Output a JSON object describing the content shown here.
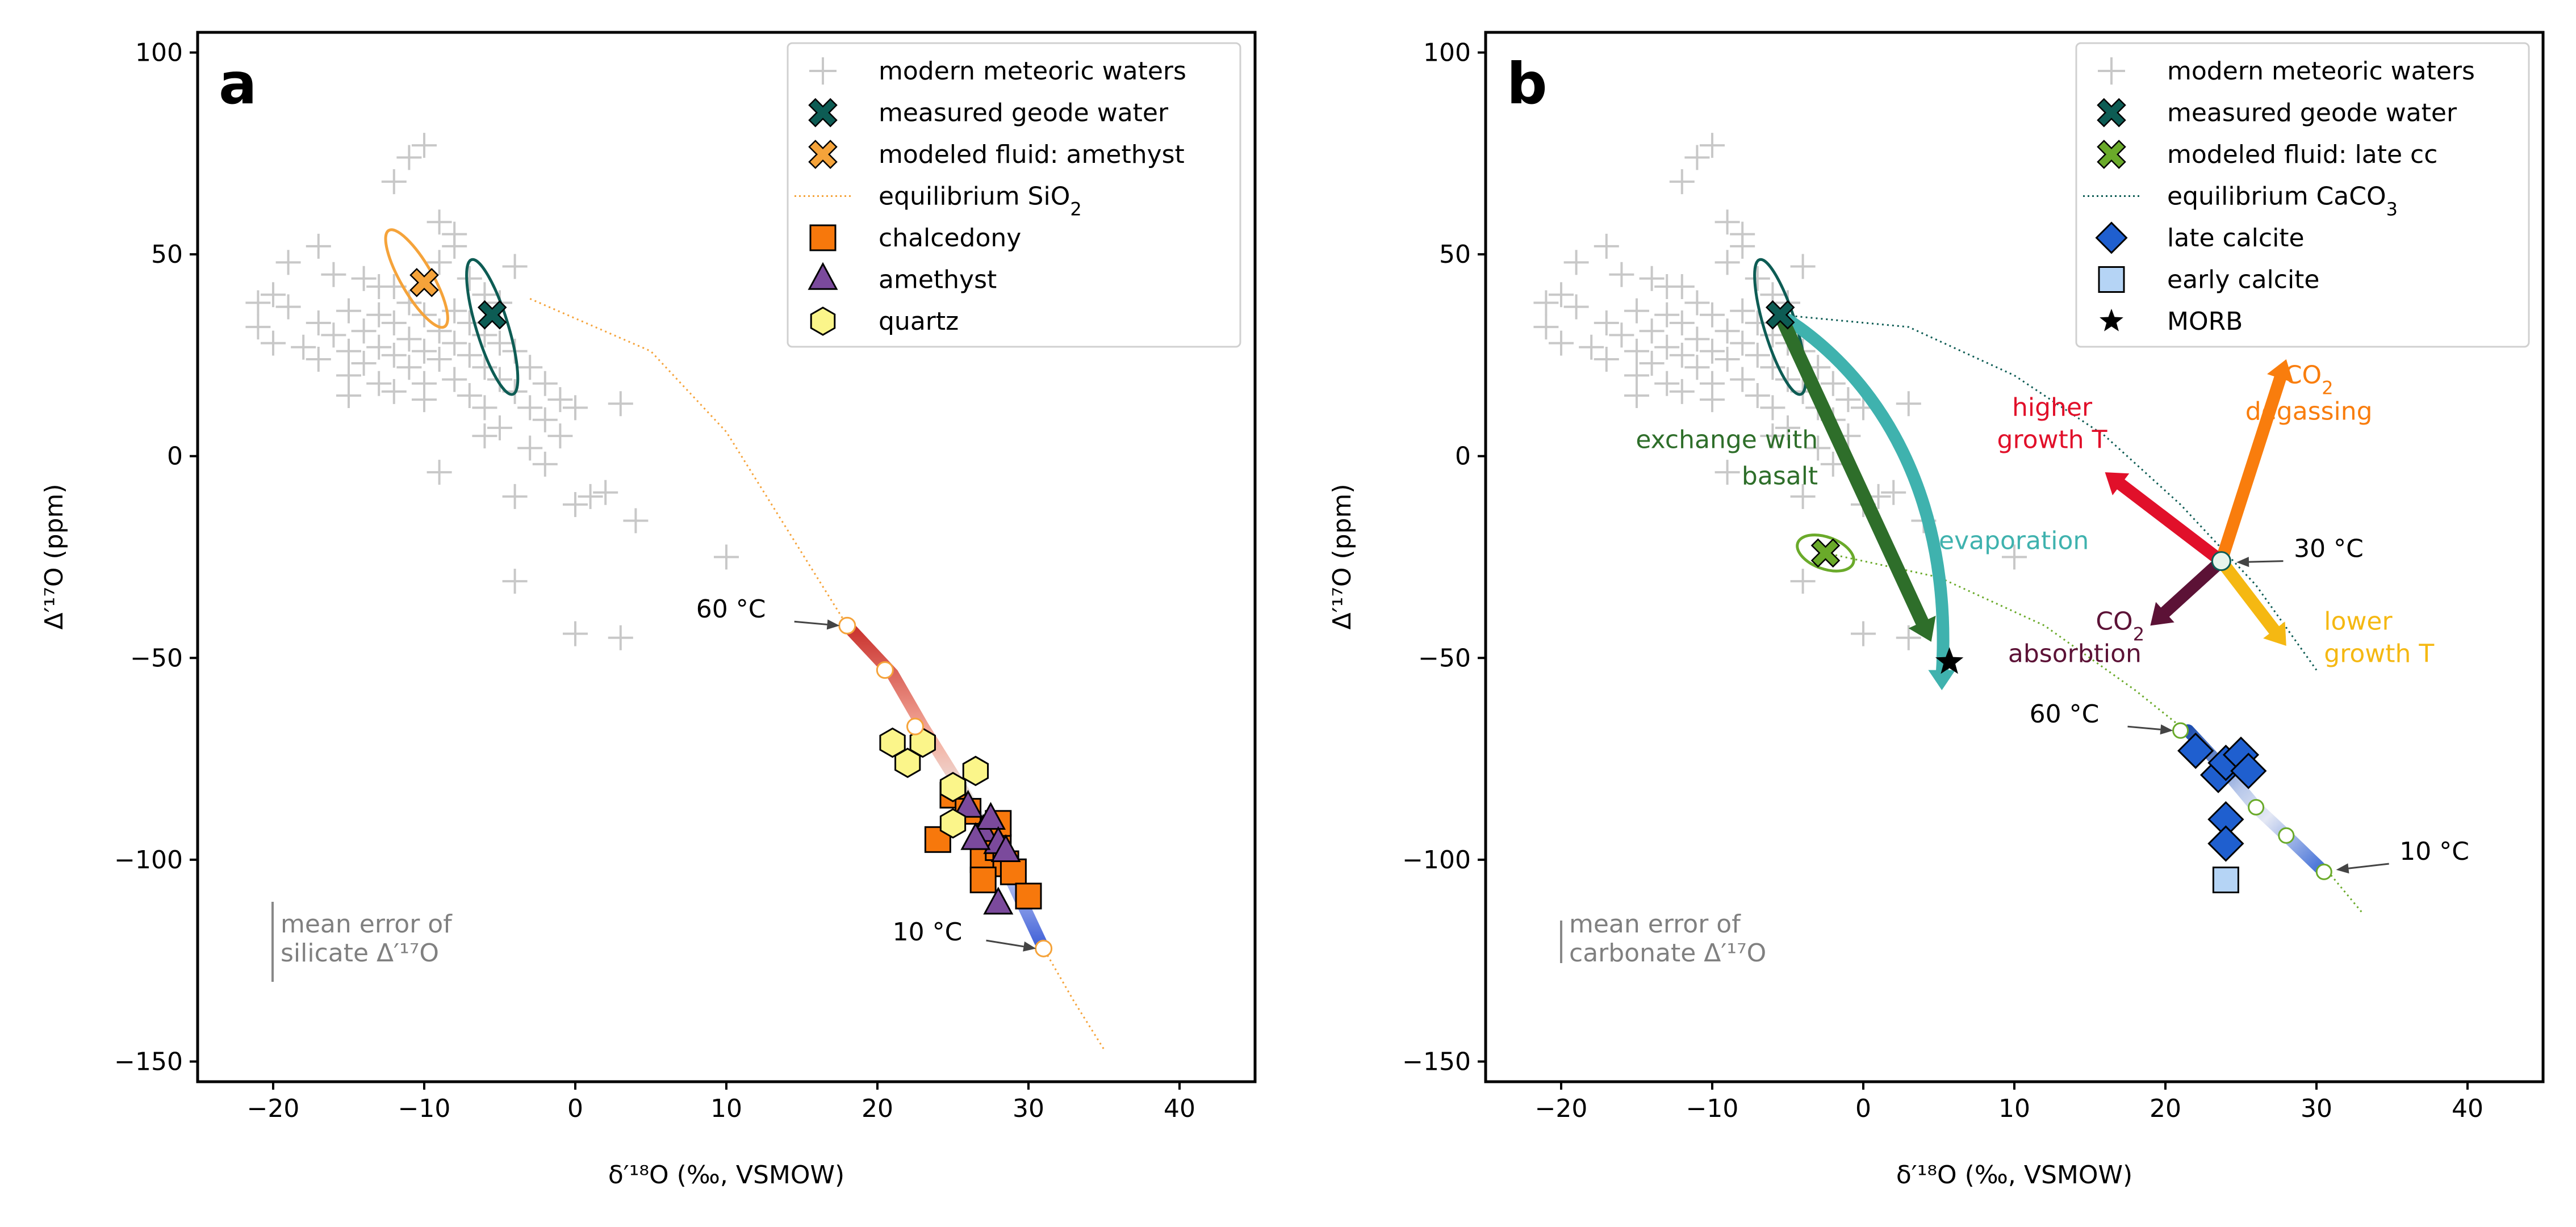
{
  "chart_data": [
    {
      "type": "scatter",
      "panel_label": "a",
      "xlabel": "δ′¹⁸O (‰, VSMOW)",
      "ylabel": "Δ′¹⁷O (ppm)",
      "xlim": [
        -25,
        45
      ],
      "ylim": [
        -155,
        105
      ],
      "xticks": [
        -20,
        -10,
        0,
        10,
        20,
        30,
        40
      ],
      "yticks": [
        100,
        50,
        0,
        -50,
        -100,
        -150
      ],
      "legend_position": "top-right",
      "legend": [
        {
          "label": "modern meteoric waters",
          "marker": "plus",
          "color": "#c8c8c8"
        },
        {
          "label": "measured geode water",
          "marker": "x",
          "color": "#0d5c54"
        },
        {
          "label": "modeled fluid: amethyst",
          "marker": "x",
          "color": "#f5a33a"
        },
        {
          "label": "equilibrium SiO",
          "label_sub": "2",
          "marker": "dotted",
          "color": "#f5a33a"
        },
        {
          "label": "chalcedony",
          "marker": "square",
          "color": "#f7780c"
        },
        {
          "label": "amethyst",
          "marker": "triangle",
          "color": "#7b4a9c"
        },
        {
          "label": "quartz",
          "marker": "hexagon",
          "color": "#fbf58a"
        }
      ],
      "meteoric_waters": [
        [
          -21,
          38
        ],
        [
          -20,
          40
        ],
        [
          -21,
          32
        ],
        [
          -20,
          28
        ],
        [
          -19,
          37
        ],
        [
          -18,
          27
        ],
        [
          -17,
          33
        ],
        [
          -17,
          24
        ],
        [
          -16,
          45
        ],
        [
          -16,
          30
        ],
        [
          -15,
          36
        ],
        [
          -15,
          26
        ],
        [
          -15,
          20
        ],
        [
          -14,
          44
        ],
        [
          -14,
          31
        ],
        [
          -14,
          23
        ],
        [
          -13,
          35
        ],
        [
          -13,
          27
        ],
        [
          -13,
          18
        ],
        [
          -12,
          42
        ],
        [
          -12,
          33
        ],
        [
          -12,
          25
        ],
        [
          -11,
          38
        ],
        [
          -11,
          29
        ],
        [
          -11,
          22
        ],
        [
          -10,
          35
        ],
        [
          -10,
          26
        ],
        [
          -10,
          18
        ],
        [
          -9,
          31
        ],
        [
          -9,
          24
        ],
        [
          -9,
          48
        ],
        [
          -8,
          36
        ],
        [
          -8,
          28
        ],
        [
          -8,
          19
        ],
        [
          -8,
          52
        ],
        [
          -7,
          33
        ],
        [
          -7,
          25
        ],
        [
          -7,
          15
        ],
        [
          -7,
          44
        ],
        [
          -6,
          30
        ],
        [
          -6,
          22
        ],
        [
          -6,
          12
        ],
        [
          -5,
          28
        ],
        [
          -5,
          19
        ],
        [
          -5,
          7
        ],
        [
          -4,
          26
        ],
        [
          -4,
          16
        ],
        [
          -4,
          -10
        ],
        [
          -3,
          22
        ],
        [
          -3,
          12
        ],
        [
          -3,
          2
        ],
        [
          -2,
          18
        ],
        [
          -2,
          9
        ],
        [
          -2,
          -2
        ],
        [
          -1,
          14
        ],
        [
          -1,
          5
        ],
        [
          0,
          12
        ],
        [
          0,
          -12
        ],
        [
          1,
          -10
        ],
        [
          -11,
          74
        ],
        [
          -10,
          77
        ],
        [
          -12,
          68
        ],
        [
          -9,
          58
        ],
        [
          -8,
          55
        ],
        [
          -17,
          52
        ],
        [
          -19,
          48
        ],
        [
          -13,
          42
        ],
        [
          -6,
          5
        ],
        [
          -4,
          -31
        ],
        [
          -9,
          -4
        ],
        [
          2,
          -9
        ],
        [
          3,
          13
        ],
        [
          4,
          -16
        ],
        [
          10,
          -25
        ],
        [
          0,
          -44
        ],
        [
          3,
          -45
        ],
        [
          -15,
          15
        ],
        [
          -12,
          16
        ],
        [
          -10,
          14
        ],
        [
          -6,
          40
        ],
        [
          -5,
          38
        ],
        [
          -4,
          47
        ]
      ],
      "measured_geode_water": {
        "x": -5.5,
        "y": 35
      },
      "modeled_fluid": {
        "x": -10,
        "y": 43
      },
      "equilibrium_curve": [
        [
          -3,
          39
        ],
        [
          5,
          26
        ],
        [
          10,
          6
        ],
        [
          14,
          -18
        ],
        [
          18,
          -42
        ],
        [
          21,
          -54
        ],
        [
          23,
          -67
        ],
        [
          26,
          -85
        ],
        [
          29,
          -106
        ],
        [
          31,
          -122
        ],
        [
          33,
          -135
        ],
        [
          35,
          -147
        ]
      ],
      "temperature_markers": [
        [
          18,
          -42
        ],
        [
          20.5,
          -53
        ],
        [
          22.5,
          -67
        ],
        [
          31,
          -122
        ]
      ],
      "temperature_labels": [
        "60 °C",
        "10 °C"
      ],
      "chalcedony": [
        [
          24,
          -95
        ],
        [
          25,
          -84
        ],
        [
          26,
          -88
        ],
        [
          27,
          -100
        ],
        [
          28,
          -97
        ],
        [
          28.5,
          -101
        ],
        [
          29,
          -103
        ],
        [
          27,
          -105
        ],
        [
          30,
          -109
        ],
        [
          28,
          -91
        ]
      ],
      "amethyst": [
        [
          26,
          -87
        ],
        [
          27,
          -93
        ],
        [
          27.5,
          -90
        ],
        [
          28,
          -96
        ],
        [
          28.5,
          -98
        ],
        [
          26.5,
          -95
        ],
        [
          28,
          -111
        ]
      ],
      "quartz": [
        [
          21,
          -71
        ],
        [
          22,
          -76
        ],
        [
          23,
          -71
        ],
        [
          25,
          -82
        ],
        [
          26.5,
          -78
        ],
        [
          25,
          -91
        ]
      ],
      "error_bar_label": [
        "mean error of",
        "silicate Δ′¹⁷O"
      ]
    },
    {
      "type": "scatter",
      "panel_label": "b",
      "xlabel": "δ′¹⁸O (‰, VSMOW)",
      "ylabel": "Δ′¹⁷O (ppm)",
      "xlim": [
        -25,
        45
      ],
      "ylim": [
        -155,
        105
      ],
      "xticks": [
        -20,
        -10,
        0,
        10,
        20,
        30,
        40
      ],
      "yticks": [
        100,
        50,
        0,
        -50,
        -100,
        -150
      ],
      "legend_position": "top-right",
      "legend": [
        {
          "label": "modern meteoric waters",
          "marker": "plus",
          "color": "#c8c8c8"
        },
        {
          "label": "measured geode water",
          "marker": "x",
          "color": "#0d5c54"
        },
        {
          "label": "modeled fluid: late cc",
          "marker": "x",
          "color": "#6aaa2a"
        },
        {
          "label": "equilibrium CaCO",
          "label_sub": "3",
          "marker": "dotted",
          "color": "#0d5c54"
        },
        {
          "label": "late calcite",
          "marker": "diamond",
          "color": "#1f5fcf"
        },
        {
          "label": "early calcite",
          "marker": "square",
          "color": "#b5d4f5"
        },
        {
          "label": "MORB",
          "marker": "star",
          "color": "#000000"
        }
      ],
      "meteoric_waters_same_as_a": true,
      "measured_geode_water": {
        "x": -5.5,
        "y": 35
      },
      "modeled_fluid": {
        "x": -2.5,
        "y": -24
      },
      "equilibrium_curve": [
        [
          -5.5,
          35
        ],
        [
          3,
          32
        ],
        [
          10,
          20
        ],
        [
          16,
          5
        ],
        [
          21,
          -12
        ],
        [
          26,
          -32
        ],
        [
          30,
          -53
        ]
      ],
      "equilibrium_curve_2": [
        [
          -2.5,
          -24
        ],
        [
          5,
          -30
        ],
        [
          12,
          -42
        ],
        [
          18,
          -58
        ],
        [
          22,
          -70
        ],
        [
          27,
          -90
        ],
        [
          31,
          -104
        ],
        [
          33,
          -113
        ]
      ],
      "temperature_markers": [
        [
          21,
          -68
        ],
        [
          26,
          -87
        ],
        [
          28,
          -94
        ],
        [
          30.5,
          -103
        ]
      ],
      "temperature_labels": [
        "60 °C",
        "30 °C",
        "10 °C"
      ],
      "late_calcite": [
        [
          22,
          -73
        ],
        [
          23.5,
          -79
        ],
        [
          24,
          -76
        ],
        [
          25,
          -74
        ],
        [
          25.5,
          -78
        ],
        [
          24,
          -90
        ],
        [
          24,
          -96
        ]
      ],
      "early_calcite": [
        [
          24,
          -105
        ]
      ],
      "morb": {
        "x": 5.7,
        "y": -51
      },
      "arrows": {
        "exchange_with_basalt": {
          "from": [
            -5.5,
            35
          ],
          "to": [
            4.5,
            -45
          ],
          "color": "#2e6e2a",
          "label": [
            "exchange with",
            "basalt"
          ]
        },
        "evaporation": {
          "from": [
            -5.5,
            35
          ],
          "to": [
            5.5,
            -58
          ],
          "color": "#3fb2ae",
          "label": "evaporation"
        },
        "co2_degassing": {
          "from": [
            23.7,
            -26
          ],
          "to": [
            28,
            24
          ],
          "color": "#f97d0d",
          "label": [
            "CO",
            "degassing"
          ]
        },
        "higher_growth_t": {
          "from": [
            23.7,
            -26
          ],
          "to": [
            16,
            -4
          ],
          "color": "#e1102a",
          "label": [
            "higher",
            "growth T"
          ]
        },
        "co2_absorbtion": {
          "from": [
            23.7,
            -26
          ],
          "to": [
            19,
            -42
          ],
          "color": "#5c1236",
          "label": [
            "CO",
            "absorbtion"
          ]
        },
        "lower_growth_t": {
          "from": [
            23.7,
            -26
          ],
          "to": [
            28,
            -47
          ],
          "color": "#f5b812",
          "label": [
            "lower",
            "growth T"
          ]
        }
      },
      "error_bar_label": [
        "mean error of",
        "carbonate Δ′¹⁷O"
      ]
    }
  ]
}
